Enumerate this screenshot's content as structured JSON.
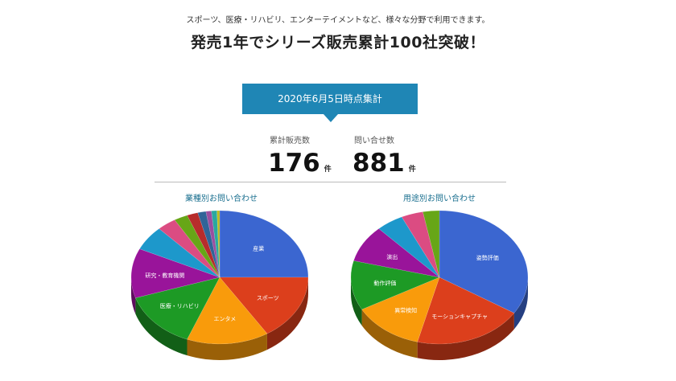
{
  "header": {
    "subtitle": "スポーツ、医療・リハビリ、エンターテイメントなど、様々な分野で利用できます。",
    "headline": "発売1年でシリーズ販売累計100社突破！"
  },
  "banner": {
    "label": "2020年6月5日時点集計"
  },
  "stats": [
    {
      "label": "累計販売数",
      "value": "176",
      "unit": "件"
    },
    {
      "label": "問い合せ数",
      "value": "881",
      "unit": "件"
    }
  ],
  "chart_data": [
    {
      "type": "pie",
      "title": "業種別お問い合わせ",
      "slices": [
        {
          "label": "産業",
          "value": 25,
          "color": "#3b66d0"
        },
        {
          "label": "スポーツ",
          "value": 16,
          "color": "#dc3f1c"
        },
        {
          "label": "エンタメ",
          "value": 15,
          "color": "#f99b0b"
        },
        {
          "label": "医療・リハビリ",
          "value": 14,
          "color": "#1d9a25"
        },
        {
          "label": "研究・教育機関",
          "value": 12,
          "color": "#99149a"
        },
        {
          "label": "",
          "value": 6,
          "color": "#1d98cb"
        },
        {
          "label": "",
          "value": 3.5,
          "color": "#db4c82"
        },
        {
          "label": "",
          "value": 2.5,
          "color": "#67a617"
        },
        {
          "label": "",
          "value": 2,
          "color": "#b72c2c"
        },
        {
          "label": "",
          "value": 1.5,
          "color": "#306498"
        },
        {
          "label": "",
          "value": 1,
          "color": "#9a4ea0"
        },
        {
          "label": "",
          "value": 1,
          "color": "#2aa8a0"
        },
        {
          "label": "",
          "value": 0.5,
          "color": "#bcbc22"
        }
      ]
    },
    {
      "type": "pie",
      "title": "用途別お問い合わせ",
      "slices": [
        {
          "label": "姿勢評価",
          "value": 34,
          "color": "#3b66d0"
        },
        {
          "label": "モーションキャプチャ",
          "value": 20,
          "color": "#dc3f1c"
        },
        {
          "label": "異常検知",
          "value": 13,
          "color": "#f99b0b"
        },
        {
          "label": "動作評価",
          "value": 12,
          "color": "#1d9a25"
        },
        {
          "label": "演出",
          "value": 9,
          "color": "#99149a"
        },
        {
          "label": "",
          "value": 5,
          "color": "#1d98cb"
        },
        {
          "label": "",
          "value": 4,
          "color": "#db4c82"
        },
        {
          "label": "",
          "value": 3,
          "color": "#67a617"
        }
      ]
    }
  ]
}
